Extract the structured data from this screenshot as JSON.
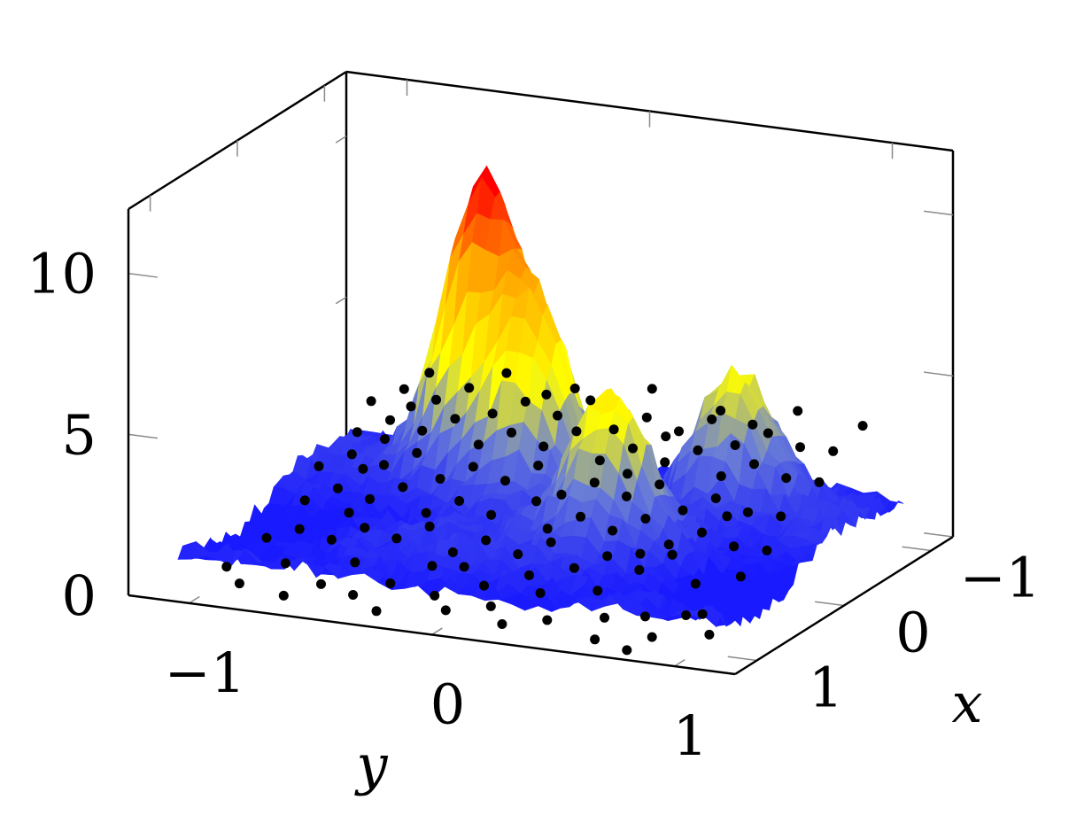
{
  "chart_data": {
    "type": "surface3d",
    "xlabel": "x",
    "ylabel": "y",
    "zlabel": "",
    "xlim": [
      -1.25,
      1.25
    ],
    "ylim": [
      -1.25,
      1.25
    ],
    "zlim": [
      0,
      12
    ],
    "x_ticks": [
      {
        "value": -1,
        "label": "−1"
      },
      {
        "value": 0,
        "label": "0"
      },
      {
        "value": 1,
        "label": "1"
      }
    ],
    "y_ticks": [
      {
        "value": -1,
        "label": "−1"
      },
      {
        "value": 0,
        "label": "0"
      },
      {
        "value": 1,
        "label": "1"
      }
    ],
    "z_ticks": [
      {
        "value": 0,
        "label": "0"
      },
      {
        "value": 5,
        "label": "5"
      },
      {
        "value": 10,
        "label": "10"
      }
    ],
    "colormap": [
      "#1a1aff",
      "#6b7fd6",
      "#ffff00",
      "#ffa500",
      "#ff0000"
    ],
    "point_color": "#000000",
    "surface_extent": {
      "x": [
        -1.1,
        1.1
      ],
      "y": [
        -1.1,
        1.1
      ]
    },
    "surface_peaks": [
      {
        "x": -0.6,
        "y": -0.45,
        "z": 10.5
      },
      {
        "x": -0.35,
        "y": -0.15,
        "z": 7.5
      },
      {
        "x": 0.15,
        "y": 0.35,
        "z": 5.8
      },
      {
        "x": -0.7,
        "y": 0.55,
        "z": 5.5
      }
    ],
    "scatter": [
      [
        0.82,
        -1.0,
        0.4
      ],
      [
        0.95,
        -0.9,
        0.2
      ],
      [
        0.7,
        -0.8,
        0.5
      ],
      [
        1.0,
        -0.7,
        0.1
      ],
      [
        0.85,
        -0.6,
        0.3
      ],
      [
        0.6,
        -0.55,
        0.6
      ],
      [
        0.9,
        -0.45,
        0.2
      ],
      [
        0.75,
        -0.35,
        0.4
      ],
      [
        1.05,
        -0.3,
        0.1
      ],
      [
        0.55,
        -0.25,
        0.7
      ],
      [
        0.8,
        -0.15,
        0.3
      ],
      [
        0.95,
        -0.05,
        0.2
      ],
      [
        0.65,
        0.0,
        0.5
      ],
      [
        0.85,
        0.1,
        0.3
      ],
      [
        1.0,
        0.2,
        0.1
      ],
      [
        0.7,
        0.25,
        0.6
      ],
      [
        0.9,
        0.35,
        0.2
      ],
      [
        0.6,
        0.45,
        0.7
      ],
      [
        0.8,
        0.55,
        0.3
      ],
      [
        1.05,
        0.6,
        0.1
      ],
      [
        0.75,
        0.7,
        0.4
      ],
      [
        0.95,
        0.8,
        0.2
      ],
      [
        0.65,
        0.9,
        0.5
      ],
      [
        0.85,
        1.0,
        0.3
      ],
      [
        1.1,
        0.75,
        0.0
      ],
      [
        0.5,
        -0.95,
        0.8
      ],
      [
        0.4,
        -0.85,
        1.0
      ],
      [
        0.45,
        -0.7,
        0.9
      ],
      [
        0.35,
        -0.6,
        1.2
      ],
      [
        0.4,
        -0.45,
        1.1
      ],
      [
        0.3,
        -0.35,
        1.4
      ],
      [
        0.45,
        -0.2,
        1.0
      ],
      [
        0.35,
        -0.1,
        1.3
      ],
      [
        0.4,
        0.05,
        1.1
      ],
      [
        0.3,
        0.15,
        1.4
      ],
      [
        0.45,
        0.3,
        1.0
      ],
      [
        0.35,
        0.4,
        1.3
      ],
      [
        0.4,
        0.55,
        1.1
      ],
      [
        0.3,
        0.65,
        1.5
      ],
      [
        0.45,
        0.8,
        1.0
      ],
      [
        0.35,
        0.95,
        1.2
      ],
      [
        0.2,
        -0.9,
        1.5
      ],
      [
        0.1,
        -0.8,
        1.8
      ],
      [
        0.15,
        -0.65,
        1.7
      ],
      [
        0.05,
        -0.55,
        2.0
      ],
      [
        0.2,
        -0.4,
        1.6
      ],
      [
        0.1,
        -0.3,
        1.9
      ],
      [
        0.15,
        -0.15,
        1.7
      ],
      [
        0.05,
        0.0,
        2.1
      ],
      [
        0.2,
        0.1,
        1.6
      ],
      [
        0.1,
        0.2,
        1.9
      ],
      [
        0.15,
        0.35,
        1.7
      ],
      [
        0.05,
        0.45,
        2.0
      ],
      [
        0.2,
        0.6,
        1.6
      ],
      [
        0.1,
        0.7,
        1.9
      ],
      [
        0.15,
        0.85,
        1.7
      ],
      [
        0.05,
        0.95,
        1.5
      ],
      [
        -0.1,
        -0.95,
        2.0
      ],
      [
        -0.2,
        -0.85,
        2.3
      ],
      [
        -0.15,
        -0.7,
        2.2
      ],
      [
        -0.25,
        -0.6,
        2.5
      ],
      [
        -0.1,
        -0.45,
        2.1
      ],
      [
        -0.2,
        -0.35,
        2.4
      ],
      [
        -0.15,
        -0.2,
        2.2
      ],
      [
        -0.25,
        -0.1,
        2.6
      ],
      [
        -0.1,
        0.05,
        2.1
      ],
      [
        -0.2,
        0.15,
        2.4
      ],
      [
        -0.15,
        0.3,
        2.2
      ],
      [
        -0.25,
        0.4,
        2.5
      ],
      [
        -0.1,
        0.55,
        2.1
      ],
      [
        -0.2,
        0.65,
        2.4
      ],
      [
        -0.15,
        0.8,
        2.2
      ],
      [
        -0.25,
        0.9,
        2.0
      ],
      [
        -0.4,
        -0.9,
        2.6
      ],
      [
        -0.5,
        -0.8,
        2.9
      ],
      [
        -0.45,
        -0.65,
        2.8
      ],
      [
        -0.55,
        -0.55,
        3.1
      ],
      [
        -0.4,
        -0.4,
        2.7
      ],
      [
        -0.5,
        -0.3,
        3.0
      ],
      [
        -0.45,
        -0.15,
        2.8
      ],
      [
        -0.55,
        -0.05,
        3.2
      ],
      [
        -0.4,
        0.1,
        2.7
      ],
      [
        -0.5,
        0.2,
        3.0
      ],
      [
        -0.45,
        0.35,
        2.8
      ],
      [
        -0.55,
        0.45,
        3.1
      ],
      [
        -0.4,
        0.6,
        2.7
      ],
      [
        -0.5,
        0.7,
        3.0
      ],
      [
        -0.45,
        0.85,
        2.8
      ],
      [
        -0.55,
        0.95,
        2.6
      ],
      [
        -0.7,
        -0.95,
        3.0
      ],
      [
        -0.8,
        -0.85,
        3.3
      ],
      [
        -0.75,
        -0.7,
        3.2
      ],
      [
        -0.85,
        -0.6,
        3.5
      ],
      [
        -0.7,
        -0.45,
        3.1
      ],
      [
        -0.8,
        -0.35,
        3.4
      ],
      [
        -0.75,
        -0.2,
        3.2
      ],
      [
        -0.85,
        -0.1,
        3.6
      ],
      [
        -0.7,
        0.05,
        3.1
      ],
      [
        -0.8,
        0.15,
        3.4
      ],
      [
        -0.75,
        0.3,
        3.2
      ],
      [
        -0.85,
        0.4,
        3.5
      ],
      [
        -0.7,
        0.55,
        3.1
      ],
      [
        -0.8,
        0.65,
        3.4
      ],
      [
        -0.75,
        0.8,
        3.2
      ],
      [
        -0.85,
        0.9,
        3.0
      ],
      [
        -0.95,
        -0.8,
        3.6
      ],
      [
        -1.0,
        -0.5,
        3.8
      ],
      [
        -0.95,
        -0.2,
        3.7
      ],
      [
        -1.0,
        0.1,
        3.9
      ],
      [
        -0.95,
        0.4,
        3.6
      ],
      [
        -1.0,
        0.7,
        3.8
      ],
      [
        -1.05,
        0.95,
        3.5
      ],
      [
        0.6,
        -0.1,
        0.9
      ],
      [
        0.55,
        0.15,
        0.8
      ],
      [
        0.25,
        -0.7,
        1.4
      ],
      [
        0.25,
        0.5,
        1.3
      ],
      [
        -0.05,
        -0.75,
        2.2
      ],
      [
        -0.05,
        0.75,
        2.2
      ],
      [
        -0.3,
        -0.75,
        2.7
      ],
      [
        -0.3,
        0.25,
        2.6
      ],
      [
        -0.6,
        -0.75,
        3.2
      ],
      [
        -0.6,
        0.3,
        3.3
      ],
      [
        -0.9,
        -0.3,
        3.5
      ],
      [
        -0.9,
        0.55,
        3.4
      ],
      [
        0.7,
        0.85,
        0.5
      ]
    ]
  }
}
